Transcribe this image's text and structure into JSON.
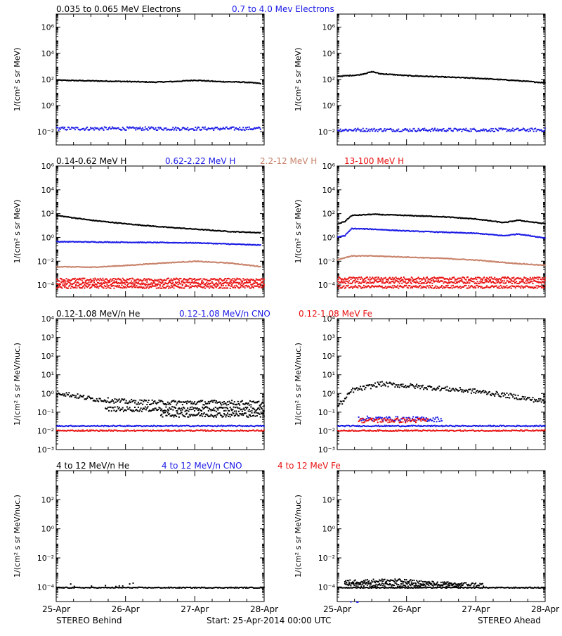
{
  "colors": {
    "black": "#000000",
    "blue": "#1a1ae6",
    "tan": "#c8826a",
    "red": "#e81010",
    "background": "#ffffff",
    "frame": "#000000"
  },
  "footer": {
    "left": "STEREO Behind",
    "center": "Start: 25-Apr-2014 00:00 UTC",
    "right": "STEREO Ahead"
  },
  "chart_data": [
    {
      "type": "scatter",
      "row_title": [
        {
          "text": "0.035 to 0.065 MeV Electrons",
          "color": "black"
        },
        {
          "text": "0.7 to 4.0 Mev Electrons",
          "color": "blue"
        }
      ],
      "ylabel": "1/(cm² s sr MeV)",
      "yscale": "log",
      "ylim_exp": [
        -3,
        7
      ],
      "yticks": [
        "10⁶",
        "10⁴",
        "10²",
        "10⁰",
        "10⁻²"
      ],
      "ytick_exp": [
        6,
        4,
        2,
        0,
        -2
      ],
      "xlim": [
        "25-Apr",
        "28-Apr"
      ],
      "panels": {
        "behind": {
          "series": [
            {
              "color": "black",
              "gap": [
                2.95,
                3.0
              ],
              "points": [
                [
                  0,
                  2.0
                ],
                [
                  0.5,
                  1.95
                ],
                [
                  1,
                  1.9
                ],
                [
                  1.4,
                  1.85
                ],
                [
                  1.7,
                  1.9
                ],
                [
                  2,
                  2.0
                ],
                [
                  2.3,
                  1.9
                ],
                [
                  2.7,
                  1.85
                ],
                [
                  2.95,
                  1.75
                ],
                [
                  3,
                  1.8
                ]
              ]
            },
            {
              "color": "blue",
              "gap": [
                2.95,
                3.0
              ],
              "noisy": true,
              "points": [
                [
                  0,
                  -1.7
                ],
                [
                  1,
                  -1.7
                ],
                [
                  2,
                  -1.7
                ],
                [
                  3,
                  -1.7
                ]
              ]
            }
          ]
        },
        "ahead": {
          "series": [
            {
              "color": "black",
              "points": [
                [
                  0,
                  2.3
                ],
                [
                  0.3,
                  2.4
                ],
                [
                  0.5,
                  2.65
                ],
                [
                  0.6,
                  2.5
                ],
                [
                  1,
                  2.35
                ],
                [
                  1.5,
                  2.25
                ],
                [
                  2,
                  2.15
                ],
                [
                  2.5,
                  2.0
                ],
                [
                  3,
                  1.8
                ]
              ]
            },
            {
              "color": "blue",
              "noisy": true,
              "points": [
                [
                  0,
                  -1.8
                ],
                [
                  1,
                  -1.8
                ],
                [
                  2,
                  -1.8
                ],
                [
                  3,
                  -1.8
                ]
              ]
            }
          ]
        }
      }
    },
    {
      "type": "scatter",
      "row_title": [
        {
          "text": "0.14-0.62 MeV H",
          "color": "black"
        },
        {
          "text": "0.62-2.22 MeV H",
          "color": "blue"
        },
        {
          "text": "2.2-12 MeV H",
          "color": "tan"
        },
        {
          "text": "13-100 MeV H",
          "color": "red"
        }
      ],
      "ylabel": "1/(cm² s sr MeV)",
      "yscale": "log",
      "ylim_exp": [
        -5,
        6
      ],
      "yticks": [
        "10⁶",
        "10⁴",
        "10²",
        "10⁰",
        "10⁻²",
        "10⁻⁴"
      ],
      "ytick_exp": [
        6,
        4,
        2,
        0,
        -2,
        -4
      ],
      "xlim": [
        "25-Apr",
        "28-Apr"
      ],
      "panels": {
        "behind": {
          "series": [
            {
              "color": "black",
              "gap": [
                2.95,
                3.0
              ],
              "points": [
                [
                  0,
                  1.9
                ],
                [
                  0.5,
                  1.5
                ],
                [
                  1,
                  1.2
                ],
                [
                  1.5,
                  0.95
                ],
                [
                  2,
                  0.75
                ],
                [
                  2.5,
                  0.55
                ],
                [
                  2.95,
                  0.45
                ],
                [
                  3,
                  0.45
                ]
              ]
            },
            {
              "color": "blue",
              "gap": [
                2.95,
                3.0
              ],
              "points": [
                [
                  0,
                  -0.3
                ],
                [
                  1,
                  -0.35
                ],
                [
                  2,
                  -0.4
                ],
                [
                  2.5,
                  -0.5
                ],
                [
                  3,
                  -0.6
                ]
              ]
            },
            {
              "color": "tan",
              "gap": [
                2.95,
                3.0
              ],
              "points": [
                [
                  0,
                  -2.4
                ],
                [
                  0.5,
                  -2.45
                ],
                [
                  1,
                  -2.3
                ],
                [
                  1.5,
                  -2.1
                ],
                [
                  2,
                  -1.95
                ],
                [
                  2.5,
                  -2.1
                ],
                [
                  2.95,
                  -2.4
                ],
                [
                  3,
                  -2.5
                ]
              ]
            },
            {
              "color": "red",
              "noisy": true,
              "points": [
                [
                  0,
                  -3.5
                ],
                [
                  3,
                  -3.5
                ]
              ]
            },
            {
              "color": "red",
              "noisy": true,
              "points": [
                [
                  0,
                  -3.8
                ],
                [
                  3,
                  -3.8
                ]
              ]
            },
            {
              "color": "red",
              "noisy": true,
              "points": [
                [
                  0,
                  -4.1
                ],
                [
                  3,
                  -4.1
                ]
              ]
            }
          ]
        },
        "ahead": {
          "series": [
            {
              "color": "black",
              "points": [
                [
                  0,
                  1.2
                ],
                [
                  0.1,
                  1.4
                ],
                [
                  0.2,
                  1.9
                ],
                [
                  0.5,
                  2.0
                ],
                [
                  1,
                  1.9
                ],
                [
                  1.5,
                  1.8
                ],
                [
                  2,
                  1.6
                ],
                [
                  2.4,
                  1.3
                ],
                [
                  2.6,
                  1.5
                ],
                [
                  3,
                  1.2
                ]
              ]
            },
            {
              "color": "blue",
              "points": [
                [
                  0,
                  0.1
                ],
                [
                  0.1,
                  0.2
                ],
                [
                  0.2,
                  0.8
                ],
                [
                  0.5,
                  0.75
                ],
                [
                  1,
                  0.6
                ],
                [
                  1.5,
                  0.5
                ],
                [
                  2,
                  0.4
                ],
                [
                  2.4,
                  0.2
                ],
                [
                  2.6,
                  0.35
                ],
                [
                  3,
                  0.0
                ]
              ]
            },
            {
              "color": "tan",
              "points": [
                [
                  0,
                  -1.8
                ],
                [
                  0.2,
                  -1.5
                ],
                [
                  0.5,
                  -1.5
                ],
                [
                  1,
                  -1.6
                ],
                [
                  1.5,
                  -1.7
                ],
                [
                  2,
                  -1.85
                ],
                [
                  2.5,
                  -2.1
                ],
                [
                  3,
                  -2.3
                ]
              ]
            },
            {
              "color": "red",
              "noisy": true,
              "points": [
                [
                  0,
                  -3.4
                ],
                [
                  3,
                  -3.4
                ]
              ]
            },
            {
              "color": "red",
              "noisy": true,
              "points": [
                [
                  0,
                  -3.7
                ],
                [
                  3,
                  -3.7
                ]
              ]
            },
            {
              "color": "red",
              "noisy": true,
              "points": [
                [
                  0,
                  -4.1
                ],
                [
                  3,
                  -4.1
                ]
              ]
            }
          ]
        }
      }
    },
    {
      "type": "scatter",
      "row_title": [
        {
          "text": "0.12-1.08 MeV/n He",
          "color": "black"
        },
        {
          "text": "0.12-1.08 MeV/n CNO",
          "color": "blue"
        },
        {
          "text": "0.12-1.08 MeV Fe",
          "color": "red"
        }
      ],
      "ylabel": "1/(cm² s sr MeV/nuc.)",
      "yscale": "log",
      "ylim_exp": [
        -3,
        4
      ],
      "yticks": [
        "10⁴",
        "10³",
        "10²",
        "10¹",
        "10⁰",
        "10⁻¹",
        "10⁻²",
        "10⁻³"
      ],
      "ytick_exp": [
        4,
        3,
        2,
        1,
        0,
        -1,
        -2,
        -3
      ],
      "xlim": [
        "25-Apr",
        "28-Apr"
      ],
      "panels": {
        "behind": {
          "series": [
            {
              "color": "black",
              "noisy": true,
              "points": [
                [
                  0,
                  0.1
                ],
                [
                  0.5,
                  -0.25
                ],
                [
                  1,
                  -0.4
                ],
                [
                  1.5,
                  -0.45
                ],
                [
                  2,
                  -0.45
                ],
                [
                  2.5,
                  -0.45
                ],
                [
                  3,
                  -0.5
                ]
              ]
            },
            {
              "color": "black",
              "noisy": true,
              "points": [
                [
                  0.7,
                  -0.8
                ],
                [
                  3,
                  -0.8
                ]
              ]
            },
            {
              "color": "black",
              "noisy": true,
              "points": [
                [
                  1.5,
                  -1.1
                ],
                [
                  3,
                  -1.1
                ]
              ]
            },
            {
              "color": "blue",
              "points": [
                [
                  0,
                  -1.7
                ],
                [
                  3,
                  -1.7
                ]
              ]
            },
            {
              "color": "red",
              "points": [
                [
                  0,
                  -1.95
                ],
                [
                  3,
                  -1.95
                ]
              ]
            }
          ]
        },
        "ahead": {
          "series": [
            {
              "color": "black",
              "noisy": true,
              "points": [
                [
                  0,
                  -0.6
                ],
                [
                  0.1,
                  -0.3
                ],
                [
                  0.2,
                  0.2
                ],
                [
                  0.4,
                  0.35
                ],
                [
                  0.6,
                  0.55
                ],
                [
                  1,
                  0.45
                ],
                [
                  1.5,
                  0.3
                ],
                [
                  2,
                  0.15
                ],
                [
                  2.5,
                  -0.1
                ],
                [
                  3,
                  -0.4
                ]
              ]
            },
            {
              "color": "blue",
              "noisy": true,
              "points": [
                [
                  0.3,
                  -1.3
                ],
                [
                  1.5,
                  -1.35
                ]
              ]
            },
            {
              "color": "red",
              "noisy": true,
              "points": [
                [
                  0.3,
                  -1.4
                ],
                [
                  1.3,
                  -1.4
                ]
              ]
            },
            {
              "color": "blue",
              "points": [
                [
                  0,
                  -1.7
                ],
                [
                  3,
                  -1.7
                ]
              ]
            },
            {
              "color": "red",
              "points": [
                [
                  0,
                  -1.95
                ],
                [
                  3,
                  -1.95
                ]
              ]
            }
          ]
        }
      }
    },
    {
      "type": "scatter",
      "row_title": [
        {
          "text": "4 to 12 MeV/n He",
          "color": "black"
        },
        {
          "text": "4 to 12 MeV/n CNO",
          "color": "blue"
        },
        {
          "text": "4 to 12 MeV Fe",
          "color": "red"
        }
      ],
      "ylabel": "1/(cm² s sr MeV/nuc.)",
      "yscale": "log",
      "ylim_exp": [
        -5,
        4
      ],
      "yticks": [
        "10²",
        "10⁰",
        "10⁻²",
        "10⁻⁴"
      ],
      "ytick_exp": [
        2,
        0,
        -2,
        -4
      ],
      "xticks": [
        "25-Apr",
        "26-Apr",
        "27-Apr",
        "28-Apr"
      ],
      "xlim": [
        "25-Apr",
        "28-Apr"
      ],
      "panels": {
        "behind": {
          "series": [
            {
              "color": "black",
              "points": [
                [
                  0,
                  -4.0
                ],
                [
                  3,
                  -4.0
                ]
              ]
            },
            {
              "color": "black",
              "noisy": true,
              "sparse": true,
              "points": [
                [
                  0.1,
                  -3.8
                ],
                [
                  1.2,
                  -3.8
                ]
              ]
            }
          ]
        },
        "ahead": {
          "series": [
            {
              "color": "black",
              "points": [
                [
                  0,
                  -4.0
                ],
                [
                  3,
                  -4.0
                ]
              ]
            },
            {
              "color": "black",
              "noisy": true,
              "points": [
                [
                  0.1,
                  -3.6
                ],
                [
                  0.8,
                  -3.5
                ],
                [
                  1.4,
                  -3.7
                ],
                [
                  2.1,
                  -3.8
                ]
              ]
            },
            {
              "color": "black",
              "noisy": true,
              "points": [
                [
                  0.1,
                  -3.8
                ],
                [
                  1.8,
                  -3.8
                ]
              ]
            },
            {
              "color": "blue",
              "points": [
                [
                  0.1,
                  -5.0
                ],
                [
                  0.3,
                  -5.0
                ]
              ]
            }
          ]
        }
      }
    }
  ]
}
